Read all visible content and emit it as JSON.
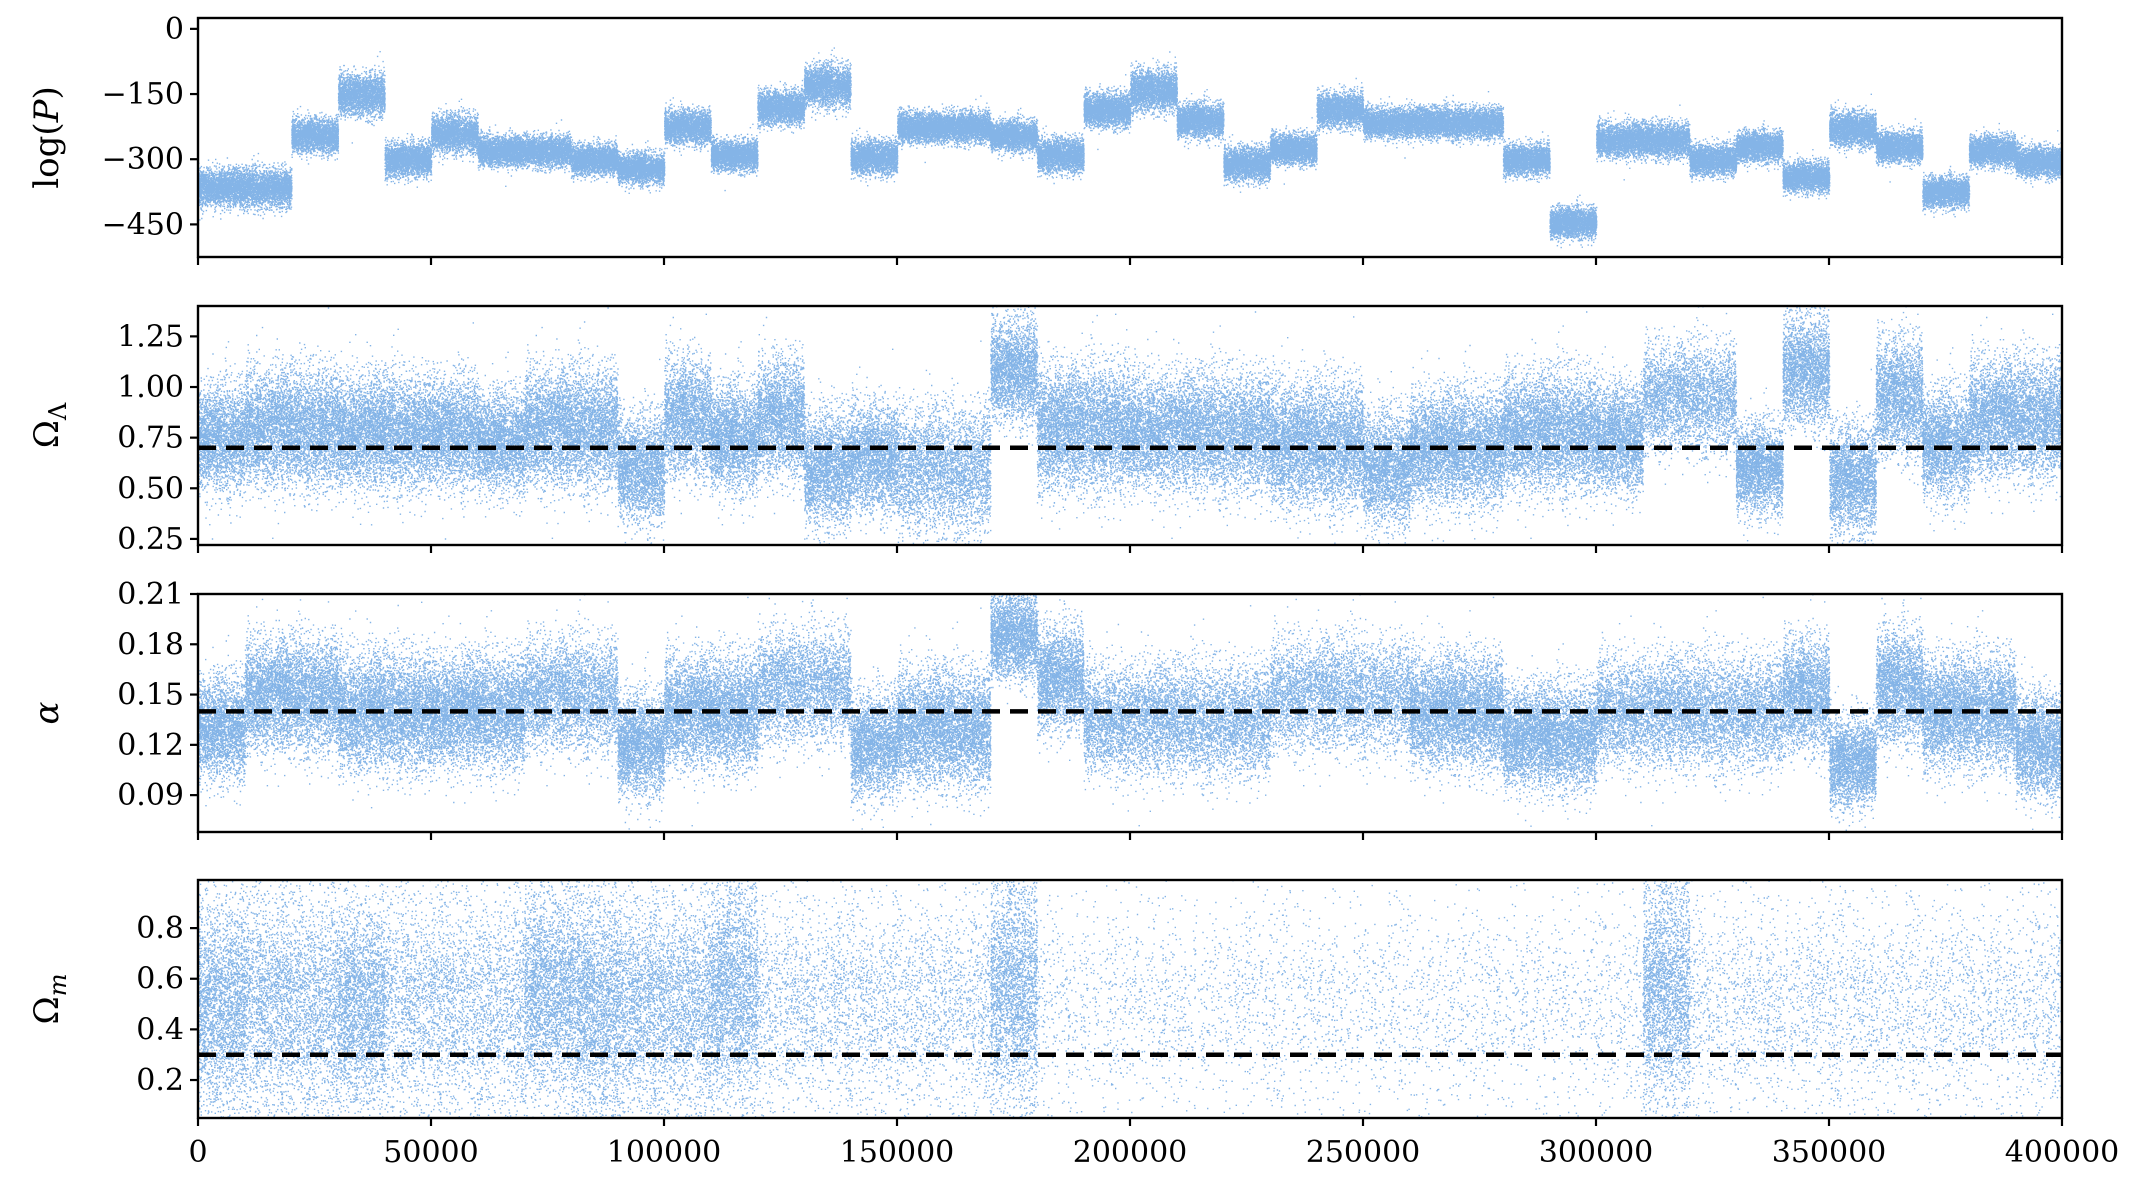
{
  "chart_data": {
    "type": "scatter",
    "shared_x": {
      "range": [
        0,
        400000
      ],
      "ticks": [
        0,
        50000,
        100000,
        150000,
        200000,
        250000,
        300000,
        350000,
        400000
      ],
      "tick_labels": [
        "0",
        "50000",
        "100000",
        "150000",
        "200000",
        "250000",
        "300000",
        "350000",
        "400000"
      ]
    },
    "marker_color": "#1f77d4",
    "reference_line_color": "#000000",
    "panels": [
      {
        "id": "logp",
        "ylabel_base": "log(",
        "ylabel_italic": "P",
        "ylabel_end": ")",
        "ylim": [
          -525,
          25
        ],
        "yticks": [
          0,
          -150,
          -300,
          -450
        ],
        "ytick_labels": [
          "0",
          "−150",
          "−300",
          "−450"
        ],
        "reference": null,
        "segments": [
          {
            "start": 0,
            "end": 20000,
            "center": -365,
            "spread": 50
          },
          {
            "start": 20000,
            "end": 30000,
            "center": -245,
            "spread": 45
          },
          {
            "start": 30000,
            "end": 40000,
            "center": -150,
            "spread": 55
          },
          {
            "start": 40000,
            "end": 50000,
            "center": -300,
            "spread": 45
          },
          {
            "start": 50000,
            "end": 60000,
            "center": -240,
            "spread": 50
          },
          {
            "start": 60000,
            "end": 80000,
            "center": -280,
            "spread": 40
          },
          {
            "start": 80000,
            "end": 90000,
            "center": -300,
            "spread": 40
          },
          {
            "start": 90000,
            "end": 100000,
            "center": -320,
            "spread": 40
          },
          {
            "start": 100000,
            "end": 110000,
            "center": -225,
            "spread": 45
          },
          {
            "start": 110000,
            "end": 120000,
            "center": -290,
            "spread": 40
          },
          {
            "start": 120000,
            "end": 130000,
            "center": -180,
            "spread": 45
          },
          {
            "start": 130000,
            "end": 140000,
            "center": -130,
            "spread": 55
          },
          {
            "start": 140000,
            "end": 150000,
            "center": -295,
            "spread": 45
          },
          {
            "start": 150000,
            "end": 170000,
            "center": -225,
            "spread": 40
          },
          {
            "start": 170000,
            "end": 180000,
            "center": -245,
            "spread": 40
          },
          {
            "start": 180000,
            "end": 190000,
            "center": -290,
            "spread": 45
          },
          {
            "start": 190000,
            "end": 200000,
            "center": -185,
            "spread": 45
          },
          {
            "start": 200000,
            "end": 210000,
            "center": -140,
            "spread": 55
          },
          {
            "start": 210000,
            "end": 220000,
            "center": -210,
            "spread": 45
          },
          {
            "start": 220000,
            "end": 230000,
            "center": -310,
            "spread": 45
          },
          {
            "start": 230000,
            "end": 240000,
            "center": -275,
            "spread": 40
          },
          {
            "start": 240000,
            "end": 250000,
            "center": -185,
            "spread": 45
          },
          {
            "start": 250000,
            "end": 280000,
            "center": -215,
            "spread": 40
          },
          {
            "start": 280000,
            "end": 290000,
            "center": -300,
            "spread": 40
          },
          {
            "start": 290000,
            "end": 300000,
            "center": -445,
            "spread": 40
          },
          {
            "start": 300000,
            "end": 320000,
            "center": -255,
            "spread": 45
          },
          {
            "start": 320000,
            "end": 330000,
            "center": -300,
            "spread": 40
          },
          {
            "start": 330000,
            "end": 340000,
            "center": -270,
            "spread": 40
          },
          {
            "start": 340000,
            "end": 350000,
            "center": -340,
            "spread": 40
          },
          {
            "start": 350000,
            "end": 360000,
            "center": -230,
            "spread": 45
          },
          {
            "start": 360000,
            "end": 370000,
            "center": -270,
            "spread": 40
          },
          {
            "start": 370000,
            "end": 380000,
            "center": -375,
            "spread": 40
          },
          {
            "start": 380000,
            "end": 390000,
            "center": -280,
            "spread": 40
          },
          {
            "start": 390000,
            "end": 400000,
            "center": -305,
            "spread": 40
          }
        ]
      },
      {
        "id": "omega-lambda",
        "ylabel_base": "Ω",
        "ylabel_sub": "Λ",
        "ylim": [
          0.22,
          1.4
        ],
        "yticks": [
          1.25,
          1.0,
          0.75,
          0.5,
          0.25
        ],
        "ytick_labels": [
          "1.25",
          "1.00",
          "0.75",
          "0.50",
          "0.25"
        ],
        "reference": 0.7,
        "segments": [
          {
            "start": 0,
            "end": 10000,
            "center": 0.75,
            "spread": 0.3
          },
          {
            "start": 10000,
            "end": 30000,
            "center": 0.8,
            "spread": 0.33
          },
          {
            "start": 30000,
            "end": 50000,
            "center": 0.78,
            "spread": 0.32
          },
          {
            "start": 50000,
            "end": 60000,
            "center": 0.78,
            "spread": 0.3
          },
          {
            "start": 60000,
            "end": 70000,
            "center": 0.73,
            "spread": 0.28
          },
          {
            "start": 70000,
            "end": 90000,
            "center": 0.8,
            "spread": 0.33
          },
          {
            "start": 90000,
            "end": 100000,
            "center": 0.6,
            "spread": 0.3
          },
          {
            "start": 100000,
            "end": 110000,
            "center": 0.85,
            "spread": 0.33
          },
          {
            "start": 110000,
            "end": 120000,
            "center": 0.75,
            "spread": 0.3
          },
          {
            "start": 120000,
            "end": 130000,
            "center": 0.85,
            "spread": 0.33
          },
          {
            "start": 130000,
            "end": 140000,
            "center": 0.6,
            "spread": 0.32
          },
          {
            "start": 140000,
            "end": 150000,
            "center": 0.65,
            "spread": 0.3
          },
          {
            "start": 150000,
            "end": 170000,
            "center": 0.6,
            "spread": 0.35
          },
          {
            "start": 170000,
            "end": 180000,
            "center": 1.08,
            "spread": 0.28
          },
          {
            "start": 180000,
            "end": 200000,
            "center": 0.8,
            "spread": 0.35
          },
          {
            "start": 200000,
            "end": 230000,
            "center": 0.78,
            "spread": 0.33
          },
          {
            "start": 230000,
            "end": 250000,
            "center": 0.72,
            "spread": 0.35
          },
          {
            "start": 250000,
            "end": 260000,
            "center": 0.6,
            "spread": 0.32
          },
          {
            "start": 260000,
            "end": 280000,
            "center": 0.7,
            "spread": 0.32
          },
          {
            "start": 280000,
            "end": 300000,
            "center": 0.78,
            "spread": 0.33
          },
          {
            "start": 300000,
            "end": 310000,
            "center": 0.75,
            "spread": 0.3
          },
          {
            "start": 310000,
            "end": 330000,
            "center": 0.95,
            "spread": 0.3
          },
          {
            "start": 330000,
            "end": 340000,
            "center": 0.6,
            "spread": 0.25
          },
          {
            "start": 340000,
            "end": 350000,
            "center": 1.08,
            "spread": 0.3
          },
          {
            "start": 350000,
            "end": 360000,
            "center": 0.55,
            "spread": 0.3
          },
          {
            "start": 360000,
            "end": 370000,
            "center": 0.95,
            "spread": 0.33
          },
          {
            "start": 370000,
            "end": 380000,
            "center": 0.72,
            "spread": 0.3
          },
          {
            "start": 380000,
            "end": 400000,
            "center": 0.85,
            "spread": 0.33
          }
        ]
      },
      {
        "id": "alpha",
        "ylabel_italic": "α",
        "ylim": [
          0.068,
          0.21
        ],
        "yticks": [
          0.21,
          0.18,
          0.15,
          0.12,
          0.09
        ],
        "ytick_labels": [
          "0.21",
          "0.18",
          "0.15",
          "0.12",
          "0.09"
        ],
        "reference": 0.14,
        "segments": [
          {
            "start": 0,
            "end": 10000,
            "center": 0.13,
            "spread": 0.035
          },
          {
            "start": 10000,
            "end": 30000,
            "center": 0.15,
            "spread": 0.038
          },
          {
            "start": 30000,
            "end": 50000,
            "center": 0.14,
            "spread": 0.04
          },
          {
            "start": 50000,
            "end": 70000,
            "center": 0.14,
            "spread": 0.038
          },
          {
            "start": 70000,
            "end": 90000,
            "center": 0.15,
            "spread": 0.038
          },
          {
            "start": 90000,
            "end": 100000,
            "center": 0.12,
            "spread": 0.035
          },
          {
            "start": 100000,
            "end": 120000,
            "center": 0.14,
            "spread": 0.038
          },
          {
            "start": 120000,
            "end": 140000,
            "center": 0.155,
            "spread": 0.038
          },
          {
            "start": 140000,
            "end": 150000,
            "center": 0.12,
            "spread": 0.035
          },
          {
            "start": 150000,
            "end": 170000,
            "center": 0.13,
            "spread": 0.04
          },
          {
            "start": 170000,
            "end": 180000,
            "center": 0.185,
            "spread": 0.028
          },
          {
            "start": 180000,
            "end": 190000,
            "center": 0.16,
            "spread": 0.035
          },
          {
            "start": 190000,
            "end": 230000,
            "center": 0.135,
            "spread": 0.038
          },
          {
            "start": 230000,
            "end": 260000,
            "center": 0.15,
            "spread": 0.038
          },
          {
            "start": 260000,
            "end": 280000,
            "center": 0.14,
            "spread": 0.038
          },
          {
            "start": 280000,
            "end": 300000,
            "center": 0.125,
            "spread": 0.035
          },
          {
            "start": 300000,
            "end": 340000,
            "center": 0.14,
            "spread": 0.038
          },
          {
            "start": 340000,
            "end": 350000,
            "center": 0.15,
            "spread": 0.038
          },
          {
            "start": 350000,
            "end": 360000,
            "center": 0.11,
            "spread": 0.03
          },
          {
            "start": 360000,
            "end": 370000,
            "center": 0.155,
            "spread": 0.038
          },
          {
            "start": 370000,
            "end": 390000,
            "center": 0.14,
            "spread": 0.038
          },
          {
            "start": 390000,
            "end": 400000,
            "center": 0.12,
            "spread": 0.035
          }
        ]
      },
      {
        "id": "omega-m",
        "ylabel_base": "Ω",
        "ylabel_sub": "m",
        "ylim": [
          0.05,
          0.99
        ],
        "yticks": [
          0.8,
          0.6,
          0.4,
          0.2
        ],
        "ytick_labels": [
          "0.8",
          "0.6",
          "0.4",
          "0.2"
        ],
        "reference": 0.3,
        "segments": [
          {
            "start": 0,
            "end": 10000,
            "center": 0.5,
            "spread": 0.45
          },
          {
            "start": 10000,
            "end": 30000,
            "center": 0.5,
            "spread": 0.5
          },
          {
            "start": 30000,
            "end": 40000,
            "center": 0.5,
            "spread": 0.45
          },
          {
            "start": 40000,
            "end": 70000,
            "center": 0.5,
            "spread": 0.5
          },
          {
            "start": 70000,
            "end": 80000,
            "center": 0.55,
            "spread": 0.45
          },
          {
            "start": 80000,
            "end": 90000,
            "center": 0.5,
            "spread": 0.5
          },
          {
            "start": 90000,
            "end": 110000,
            "center": 0.5,
            "spread": 0.48
          },
          {
            "start": 110000,
            "end": 120000,
            "center": 0.55,
            "spread": 0.5
          },
          {
            "start": 120000,
            "end": 170000,
            "center": 0.5,
            "spread": 0.48
          },
          {
            "start": 170000,
            "end": 180000,
            "center": 0.55,
            "spread": 0.5
          },
          {
            "start": 180000,
            "end": 310000,
            "center": 0.5,
            "spread": 0.48
          },
          {
            "start": 310000,
            "end": 320000,
            "center": 0.55,
            "spread": 0.5
          },
          {
            "start": 320000,
            "end": 400000,
            "center": 0.5,
            "spread": 0.48
          }
        ]
      }
    ]
  }
}
